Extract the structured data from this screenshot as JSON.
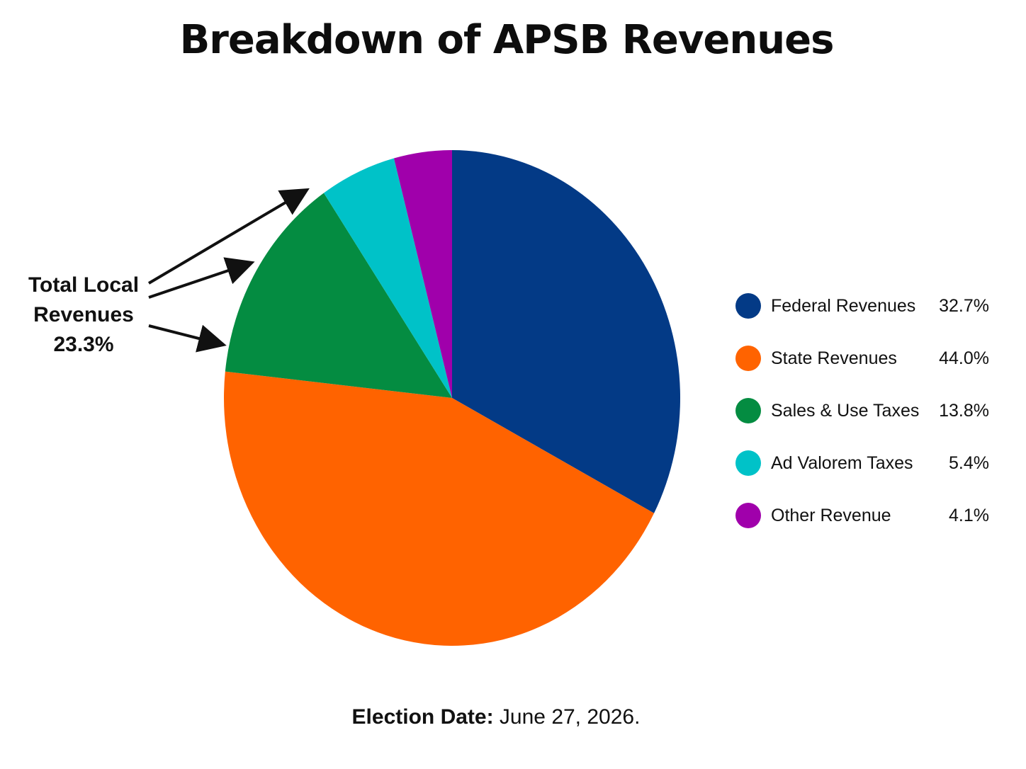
{
  "chart_data": {
    "type": "pie",
    "title": "Breakdown of APSB Revenues",
    "slices": [
      {
        "label": "Federal Revenues",
        "value": 32.7,
        "display": "32.7%",
        "color": "#033a86"
      },
      {
        "label": "State Revenues",
        "value": 44.0,
        "display": "44.0%",
        "color": "#ff6300"
      },
      {
        "label": "Sales & Use Taxes",
        "value": 13.8,
        "display": "13.8%",
        "color": "#048c41"
      },
      {
        "label": "Ad Valorem Taxes",
        "value": 5.4,
        "display": "5.4%",
        "color": "#00c2c8"
      },
      {
        "label": "Other Revenue",
        "value": 4.1,
        "display": "4.1%",
        "color": "#a000ab"
      }
    ],
    "legend_position": "right",
    "annotation": {
      "line1": "Total Local",
      "line2": "Revenues",
      "line3": "23.3%"
    }
  },
  "footer": {
    "label": "Election Date:",
    "value": " June 27, 2026."
  }
}
